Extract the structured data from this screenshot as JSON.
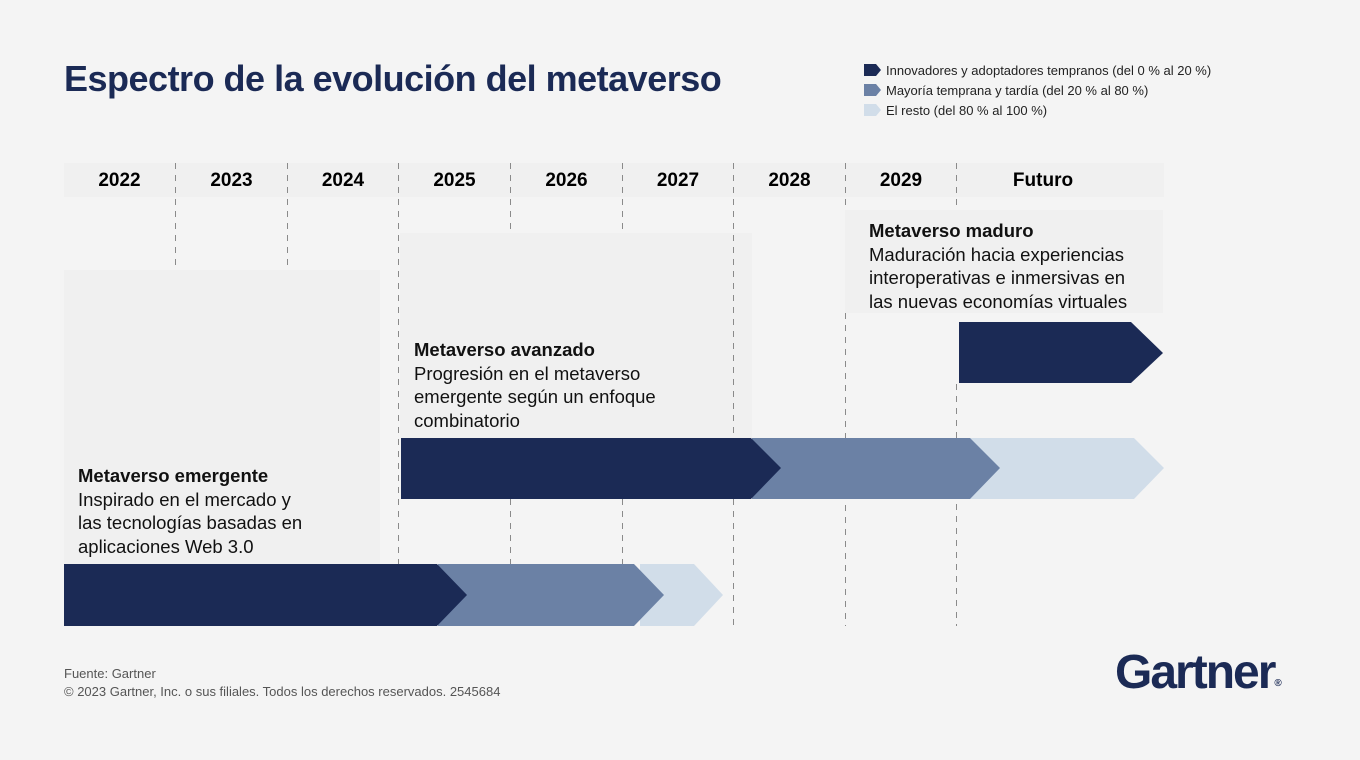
{
  "title": "Espectro de la evolución del metaverso",
  "colors": {
    "dark": "#1b2a55",
    "mid": "#6b81a5",
    "light": "#d1dde9",
    "panel": "#f0f0f0",
    "background": "#f4f4f4"
  },
  "legend": [
    {
      "label": "Innovadores y adoptadores tempranos (del 0 % al 20 %)",
      "color": "#1b2a55"
    },
    {
      "label": "Mayoría temprana y tardía (del 20 % al 80 %)",
      "color": "#6b81a5"
    },
    {
      "label": "El resto (del 80 % al 100 %)",
      "color": "#d1dde9"
    }
  ],
  "years": [
    "2022",
    "2023",
    "2024",
    "2025",
    "2026",
    "2027",
    "2028",
    "2029",
    "Futuro"
  ],
  "stages": [
    {
      "title": "Metaverso emergente",
      "lines": [
        "Inspirado en el mercado y",
        "las tecnologías basadas en",
        "aplicaciones Web 3.0"
      ]
    },
    {
      "title": "Metaverso avanzado",
      "lines": [
        "Progresión en el metaverso",
        "emergente según un enfoque",
        "combinatorio"
      ]
    },
    {
      "title": "Metaverso maduro",
      "lines": [
        "Maduración hacia experiencias",
        "interoperativas e inmersivas en",
        "las nuevas economías virtuales"
      ]
    }
  ],
  "footer": {
    "source": "Fuente: Gartner",
    "copyright": "© 2023 Gartner, Inc. o sus filiales. Todos los derechos reservados. 2545684"
  },
  "logo": {
    "text": "Gartner",
    "mark": "®"
  }
}
